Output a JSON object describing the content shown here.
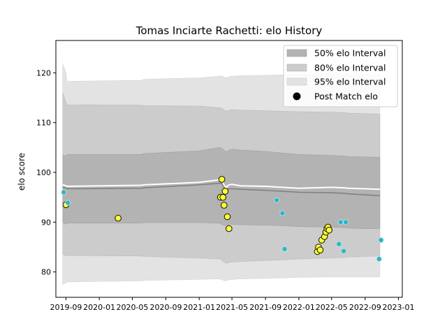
{
  "chart_data": {
    "type": "scatter",
    "title": "Tomas Inciarte Rachetti: elo History",
    "xlabel": "",
    "ylabel": "elo score",
    "x_ticks": [
      "2019-09",
      "2020-01",
      "2020-05",
      "2020-09",
      "2021-01",
      "2021-05",
      "2021-09",
      "2022-01",
      "2022-05",
      "2022-09",
      "2023-01"
    ],
    "y_ticks": [
      80,
      90,
      100,
      110,
      120
    ],
    "xlim": [
      "2019-07-26",
      "2023-01-15"
    ],
    "ylim": [
      74.9,
      126.5
    ],
    "grid": false,
    "legend_position": "top-right",
    "legend": [
      {
        "label": "50% elo Interval",
        "kind": "band",
        "color": "#b3b3b3"
      },
      {
        "label": "80% elo Interval",
        "kind": "band",
        "color": "#cccccc"
      },
      {
        "label": "95% elo Interval",
        "kind": "band",
        "color": "#e3e3e3"
      },
      {
        "label": "Post Match elo",
        "kind": "marker",
        "color": "#000000"
      }
    ],
    "colors": {
      "band_50": "#b3b3b3",
      "band_80": "#cccccc",
      "band_95": "#e3e3e3",
      "mean_line": "#808080",
      "median_line": "#ffffff",
      "point_yellow": "#ffff33",
      "point_cyan": "#22bbcc",
      "point_edge_dark": "#111111",
      "point_edge_light": "#dddddd"
    },
    "band_dates": [
      "2019-08-20",
      "2019-09-01",
      "2019-09-05",
      "2020-06-01",
      "2020-06-15",
      "2021-01-01",
      "2021-03-15",
      "2021-03-25",
      "2021-04-01",
      "2021-04-10",
      "2021-04-20",
      "2021-05-01",
      "2021-06-01",
      "2021-09-01",
      "2021-11-01",
      "2022-01-01",
      "2022-05-01",
      "2022-06-15",
      "2022-07-01",
      "2022-09-01",
      "2022-10-25"
    ],
    "mean": [
      97.0,
      96.8,
      96.7,
      96.8,
      96.9,
      97.5,
      97.8,
      97.8,
      97.0,
      96.5,
      96.7,
      96.7,
      96.6,
      96.4,
      96.2,
      96.0,
      95.9,
      95.8,
      95.7,
      95.5,
      95.3
    ],
    "median": [
      97.5,
      97.3,
      97.2,
      97.4,
      97.5,
      98.0,
      98.5,
      98.6,
      97.5,
      97.0,
      97.5,
      97.6,
      97.3,
      97.2,
      97.0,
      96.8,
      97.0,
      96.9,
      96.8,
      96.7,
      96.6
    ],
    "band_50": {
      "lower": [
        89.9,
        89.6,
        89.8,
        89.8,
        89.9,
        89.9,
        89.8,
        89.6,
        89.4,
        89.3,
        89.5,
        89.6,
        89.5,
        89.4,
        89.3,
        89.1,
        89.0,
        88.9,
        88.8,
        88.7,
        88.7
      ],
      "upper": [
        103.5,
        103.3,
        103.6,
        103.6,
        103.8,
        104.3,
        105.0,
        104.9,
        104.5,
        104.1,
        104.5,
        104.7,
        104.5,
        104.2,
        103.9,
        103.6,
        103.4,
        103.3,
        103.2,
        103.1,
        103.0
      ]
    },
    "band_80": {
      "lower": [
        83.5,
        83.3,
        83.3,
        83.2,
        83.1,
        82.8,
        82.6,
        82.4,
        82.0,
        81.7,
        81.9,
        82.0,
        82.1,
        82.3,
        82.4,
        82.6,
        82.8,
        82.9,
        83.0,
        83.1,
        83.2
      ],
      "upper": [
        116.0,
        114.0,
        113.6,
        113.5,
        113.4,
        113.3,
        113.0,
        112.9,
        112.6,
        112.3,
        112.5,
        112.6,
        112.5,
        112.4,
        112.3,
        112.2,
        112.1,
        112.0,
        111.9,
        111.8,
        111.7
      ]
    },
    "band_95": {
      "lower": [
        77.5,
        77.8,
        78.0,
        78.2,
        78.3,
        78.5,
        78.6,
        78.5,
        78.3,
        78.2,
        78.4,
        78.5,
        78.6,
        78.7,
        78.8,
        78.9,
        79.0,
        79.0,
        79.0,
        79.0,
        79.0
      ],
      "upper": [
        121.8,
        120.0,
        118.3,
        118.5,
        118.7,
        119.0,
        119.3,
        119.4,
        119.2,
        119.0,
        119.2,
        119.3,
        119.4,
        119.5,
        119.6,
        119.7,
        119.8,
        119.8,
        119.8,
        119.8,
        119.8
      ]
    },
    "post_match_elo": [
      {
        "date": "2019-08-24",
        "elo": 96.0,
        "style": "cyan"
      },
      {
        "date": "2019-09-01",
        "elo": 93.5,
        "style": "yellow"
      },
      {
        "date": "2019-09-08",
        "elo": 93.9,
        "style": "cyan"
      },
      {
        "date": "2020-03-10",
        "elo": 90.8,
        "style": "yellow"
      },
      {
        "date": "2021-03-20",
        "elo": 95.0,
        "style": "yellow"
      },
      {
        "date": "2021-03-25",
        "elo": 98.6,
        "style": "yellow"
      },
      {
        "date": "2021-03-29",
        "elo": 95.0,
        "style": "yellow"
      },
      {
        "date": "2021-04-02",
        "elo": 93.4,
        "style": "yellow"
      },
      {
        "date": "2021-04-06",
        "elo": 96.2,
        "style": "yellow"
      },
      {
        "date": "2021-04-14",
        "elo": 91.1,
        "style": "yellow"
      },
      {
        "date": "2021-04-20",
        "elo": 88.7,
        "style": "yellow"
      },
      {
        "date": "2021-10-12",
        "elo": 94.4,
        "style": "cyan"
      },
      {
        "date": "2021-11-02",
        "elo": 91.8,
        "style": "cyan"
      },
      {
        "date": "2021-11-10",
        "elo": 84.6,
        "style": "cyan"
      },
      {
        "date": "2022-03-10",
        "elo": 84.1,
        "style": "yellow"
      },
      {
        "date": "2022-03-14",
        "elo": 85.0,
        "style": "yellow"
      },
      {
        "date": "2022-03-20",
        "elo": 84.4,
        "style": "yellow"
      },
      {
        "date": "2022-03-26",
        "elo": 86.4,
        "style": "yellow"
      },
      {
        "date": "2022-04-05",
        "elo": 87.1,
        "style": "yellow"
      },
      {
        "date": "2022-04-10",
        "elo": 88.0,
        "style": "yellow"
      },
      {
        "date": "2022-04-14",
        "elo": 88.7,
        "style": "yellow"
      },
      {
        "date": "2022-04-18",
        "elo": 89.0,
        "style": "yellow"
      },
      {
        "date": "2022-04-22",
        "elo": 88.4,
        "style": "yellow"
      },
      {
        "date": "2022-05-28",
        "elo": 85.6,
        "style": "cyan"
      },
      {
        "date": "2022-06-03",
        "elo": 90.0,
        "style": "cyan"
      },
      {
        "date": "2022-06-14",
        "elo": 84.2,
        "style": "cyan"
      },
      {
        "date": "2022-06-22",
        "elo": 90.0,
        "style": "cyan"
      },
      {
        "date": "2022-10-22",
        "elo": 82.6,
        "style": "cyan"
      },
      {
        "date": "2022-10-29",
        "elo": 86.4,
        "style": "cyan"
      }
    ]
  }
}
